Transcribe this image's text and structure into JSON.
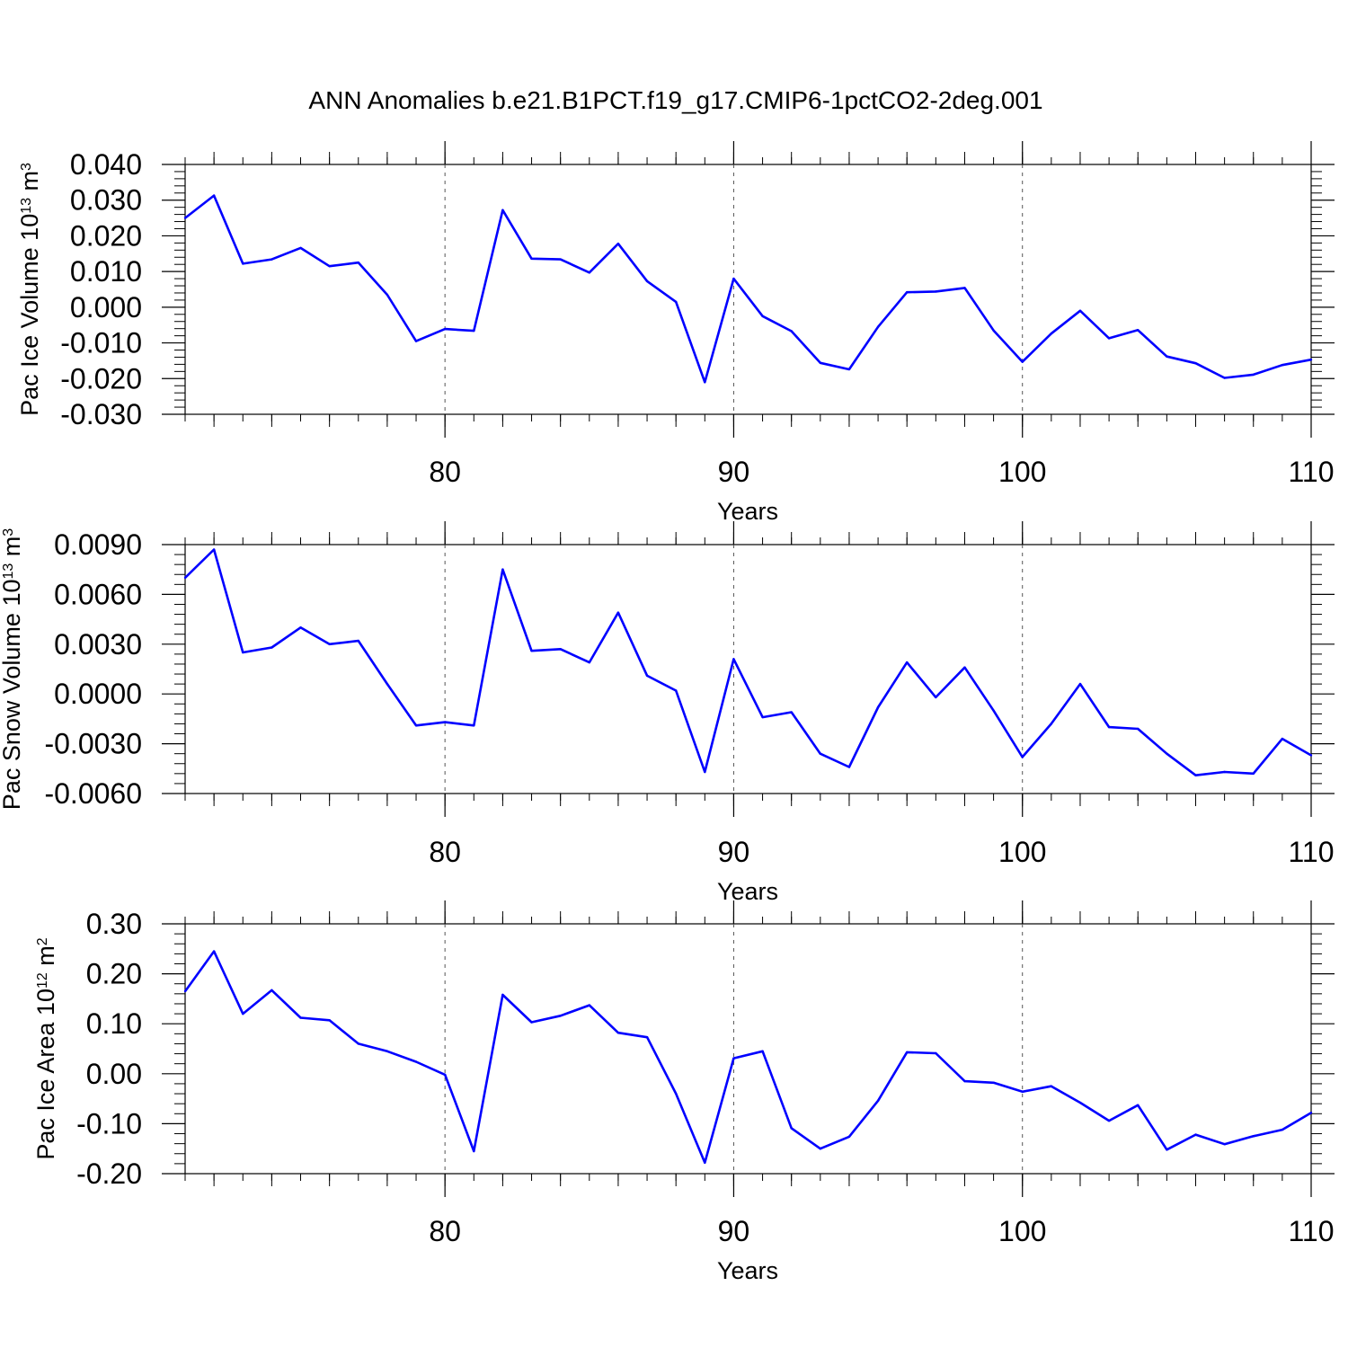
{
  "title": "ANN Anomalies b.e21.B1PCT.f19_g17.CMIP6-1pctCO2-2deg.001",
  "line_color": "#0000ff",
  "chart_data": [
    {
      "type": "line",
      "ylabel": {
        "text": "Pac Ice Volume 10",
        "exp": "13",
        "unit": " m",
        "unit_exp": "3"
      },
      "xlabel": "Years",
      "xlim": [
        71,
        110
      ],
      "ylim": [
        -0.03,
        0.04
      ],
      "x_ticks": [
        "80",
        "90",
        "100",
        "110"
      ],
      "y_ticks": [
        "-0.030",
        "-0.020",
        "-0.010",
        "0.000",
        "0.010",
        "0.020",
        "0.030",
        "0.040"
      ],
      "x": [
        71,
        72,
        73,
        74,
        75,
        76,
        77,
        78,
        79,
        80,
        81,
        82,
        83,
        84,
        85,
        86,
        87,
        88,
        89,
        90,
        91,
        92,
        93,
        94,
        95,
        96,
        97,
        98,
        99,
        100,
        101,
        102,
        103,
        104,
        105,
        106,
        107,
        108,
        109,
        110
      ],
      "values": [
        0.025,
        0.0313,
        0.0122,
        0.0134,
        0.0166,
        0.0115,
        0.0125,
        0.0035,
        -0.0095,
        -0.0061,
        -0.0066,
        0.0272,
        0.0136,
        0.0134,
        0.0097,
        0.0178,
        0.0073,
        0.0015,
        -0.021,
        0.008,
        -0.0025,
        -0.0067,
        -0.0156,
        -0.0174,
        -0.0055,
        0.0042,
        0.0044,
        0.0054,
        -0.0065,
        -0.0153,
        -0.0074,
        -0.001,
        -0.0087,
        -0.0064,
        -0.0138,
        -0.0157,
        -0.0198,
        -0.0189,
        -0.0162,
        -0.0147
      ]
    },
    {
      "type": "line",
      "ylabel": {
        "text": "Pac Snow Volume 10",
        "exp": "13",
        "unit": " m",
        "unit_exp": "3"
      },
      "xlabel": "Years",
      "xlim": [
        71,
        110
      ],
      "ylim": [
        -0.006,
        0.009
      ],
      "x_ticks": [
        "80",
        "90",
        "100",
        "110"
      ],
      "y_ticks": [
        "-0.0060",
        "-0.0030",
        "0.0000",
        "0.0030",
        "0.0060",
        "0.0090"
      ],
      "x": [
        71,
        72,
        73,
        74,
        75,
        76,
        77,
        78,
        79,
        80,
        81,
        82,
        83,
        84,
        85,
        86,
        87,
        88,
        89,
        90,
        91,
        92,
        93,
        94,
        95,
        96,
        97,
        98,
        99,
        100,
        101,
        102,
        103,
        104,
        105,
        106,
        107,
        108,
        109,
        110
      ],
      "values": [
        0.007,
        0.0087,
        0.0025,
        0.0028,
        0.004,
        0.003,
        0.0032,
        0.0006,
        -0.0019,
        -0.0017,
        -0.0019,
        0.0075,
        0.0026,
        0.0027,
        0.0019,
        0.0049,
        0.0011,
        0.0002,
        -0.0047,
        0.0021,
        -0.0014,
        -0.0011,
        -0.0036,
        -0.0044,
        -0.0008,
        0.0019,
        -0.0002,
        0.0016,
        -0.001,
        -0.0038,
        -0.0018,
        0.0006,
        -0.002,
        -0.0021,
        -0.0036,
        -0.0049,
        -0.0047,
        -0.0048,
        -0.0027,
        -0.0037
      ]
    },
    {
      "type": "line",
      "ylabel": {
        "text": "Pac Ice Area 10",
        "exp": "12",
        "unit": " m",
        "unit_exp": "2"
      },
      "xlabel": "Years",
      "xlim": [
        71,
        110
      ],
      "ylim": [
        -0.2,
        0.3
      ],
      "x_ticks": [
        "80",
        "90",
        "100",
        "110"
      ],
      "y_ticks": [
        "-0.20",
        "-0.10",
        "0.00",
        "0.10",
        "0.20",
        "0.30"
      ],
      "x": [
        71,
        72,
        73,
        74,
        75,
        76,
        77,
        78,
        79,
        80,
        81,
        82,
        83,
        84,
        85,
        86,
        87,
        88,
        89,
        90,
        91,
        92,
        93,
        94,
        95,
        96,
        97,
        98,
        99,
        100,
        101,
        102,
        103,
        104,
        105,
        106,
        107,
        108,
        109,
        110
      ],
      "values": [
        0.165,
        0.245,
        0.12,
        0.167,
        0.112,
        0.107,
        0.06,
        0.045,
        0.024,
        -0.002,
        -0.155,
        0.158,
        0.103,
        0.116,
        0.137,
        0.082,
        0.073,
        -0.04,
        -0.178,
        0.031,
        0.045,
        -0.109,
        -0.15,
        -0.126,
        -0.054,
        0.043,
        0.041,
        -0.015,
        -0.018,
        -0.036,
        -0.025,
        -0.058,
        -0.094,
        -0.063,
        -0.152,
        -0.122,
        -0.141,
        -0.125,
        -0.112,
        -0.078
      ]
    }
  ]
}
